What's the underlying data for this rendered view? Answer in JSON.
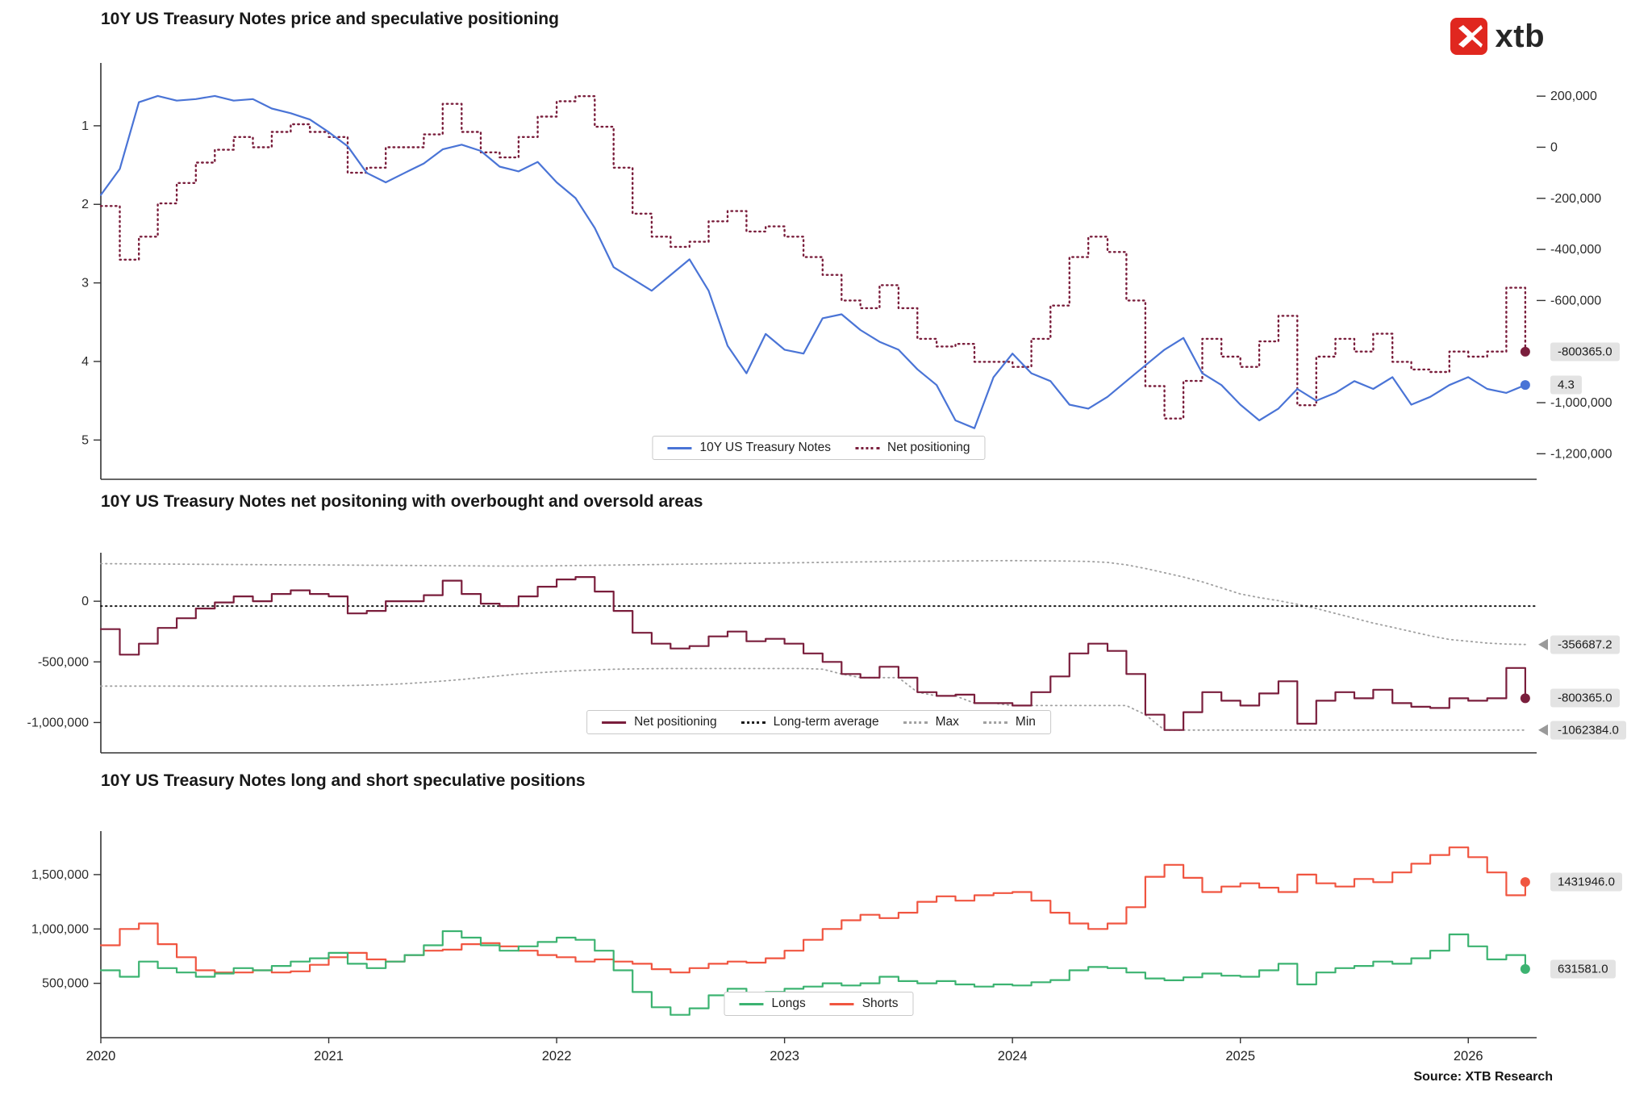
{
  "meta": {
    "source": "Source: XTB Research",
    "logo_text": "xtb",
    "logo_color": "#e0271f"
  },
  "chart_data": {
    "type": "line",
    "x_domain": [
      2020,
      2026.3
    ],
    "x_axis": {
      "ticks": [
        {
          "v": 2020,
          "label": "2020"
        },
        {
          "v": 2021,
          "label": "2021"
        },
        {
          "v": 2022,
          "label": "2022"
        },
        {
          "v": 2023,
          "label": "2023"
        },
        {
          "v": 2024,
          "label": "2024"
        },
        {
          "v": 2025,
          "label": "2025"
        },
        {
          "v": 2026,
          "label": "2026"
        }
      ]
    },
    "colors": {
      "blue": "#4a74d6",
      "maroon": "#7a1e3c",
      "gray": "#a0a0a0",
      "black": "#1a1a1a",
      "green": "#3cb371",
      "red": "#f05540"
    },
    "x": [
      2020,
      2020.083,
      2020.167,
      2020.25,
      2020.333,
      2020.417,
      2020.5,
      2020.583,
      2020.667,
      2020.75,
      2020.833,
      2020.917,
      2021,
      2021.083,
      2021.167,
      2021.25,
      2021.333,
      2021.417,
      2021.5,
      2021.583,
      2021.667,
      2021.75,
      2021.833,
      2021.917,
      2022,
      2022.083,
      2022.167,
      2022.25,
      2022.333,
      2022.417,
      2022.5,
      2022.583,
      2022.667,
      2022.75,
      2022.833,
      2022.917,
      2023,
      2023.083,
      2023.167,
      2023.25,
      2023.333,
      2023.417,
      2023.5,
      2023.583,
      2023.667,
      2023.75,
      2023.833,
      2023.917,
      2024,
      2024.083,
      2024.167,
      2024.25,
      2024.333,
      2024.417,
      2024.5,
      2024.583,
      2024.667,
      2024.75,
      2024.833,
      2024.917,
      2025,
      2025.083,
      2025.167,
      2025.25,
      2025.333,
      2025.417,
      2025.5,
      2025.583,
      2025.667,
      2025.75,
      2025.833,
      2025.917,
      2026,
      2026.083,
      2026.167,
      2026.25
    ],
    "series": {
      "yield": [
        1.88,
        1.55,
        0.7,
        0.62,
        0.68,
        0.66,
        0.62,
        0.68,
        0.66,
        0.78,
        0.84,
        0.92,
        1.08,
        1.26,
        1.6,
        1.72,
        1.6,
        1.48,
        1.3,
        1.24,
        1.32,
        1.52,
        1.58,
        1.46,
        1.72,
        1.92,
        2.3,
        2.8,
        2.95,
        3.1,
        2.9,
        2.7,
        3.1,
        3.8,
        4.15,
        3.65,
        3.85,
        3.9,
        3.45,
        3.4,
        3.6,
        3.75,
        3.85,
        4.1,
        4.3,
        4.75,
        4.85,
        4.2,
        3.9,
        4.15,
        4.25,
        4.55,
        4.6,
        4.45,
        4.25,
        4.05,
        3.85,
        3.7,
        4.15,
        4.3,
        4.55,
        4.75,
        4.6,
        4.35,
        4.5,
        4.4,
        4.25,
        4.35,
        4.2,
        4.55,
        4.45,
        4.3,
        4.2,
        4.35,
        4.4,
        4.3
      ],
      "net": [
        -230000,
        -440000,
        -350000,
        -220000,
        -140000,
        -60000,
        -10000,
        40000,
        0,
        60000,
        90000,
        60000,
        40000,
        -100000,
        -80000,
        0,
        0,
        50000,
        170000,
        60000,
        -20000,
        -40000,
        40000,
        120000,
        180000,
        200000,
        80000,
        -80000,
        -260000,
        -350000,
        -390000,
        -370000,
        -290000,
        -250000,
        -330000,
        -310000,
        -350000,
        -430000,
        -500000,
        -600000,
        -630000,
        -540000,
        -630000,
        -750000,
        -780000,
        -770000,
        -840000,
        -840000,
        -860000,
        -750000,
        -620000,
        -430000,
        -350000,
        -410000,
        -600000,
        -935000,
        -1062000,
        -915000,
        -750000,
        -820000,
        -860000,
        -760000,
        -660000,
        -1010000,
        -820000,
        -750000,
        -800000,
        -730000,
        -840000,
        -870000,
        -880000,
        -800000,
        -820000,
        -800000,
        -550000,
        -800365
      ],
      "max": [
        310000,
        309000,
        308000,
        307000,
        306000,
        305000,
        304000,
        303000,
        302000,
        301000,
        300000,
        300000,
        299000,
        298000,
        297000,
        296000,
        295000,
        294000,
        293000,
        292000,
        291000,
        290000,
        290000,
        291000,
        292000,
        294000,
        296000,
        298000,
        300000,
        302000,
        304000,
        306000,
        308000,
        310000,
        312000,
        314000,
        316000,
        318000,
        320000,
        322000,
        324000,
        326000,
        328000,
        330000,
        331000,
        332000,
        333000,
        334000,
        335000,
        334000,
        333000,
        331000,
        328000,
        320000,
        300000,
        270000,
        235000,
        200000,
        160000,
        110000,
        60000,
        30000,
        5000,
        -25000,
        -60000,
        -100000,
        -140000,
        -180000,
        -215000,
        -250000,
        -285000,
        -315000,
        -330000,
        -345000,
        -353000,
        -356687.2
      ],
      "min": [
        -700000,
        -700000,
        -700000,
        -700000,
        -700000,
        -700000,
        -700000,
        -700000,
        -700000,
        -700000,
        -700000,
        -700000,
        -698000,
        -695000,
        -692000,
        -688000,
        -680000,
        -670000,
        -658000,
        -645000,
        -630000,
        -615000,
        -600000,
        -590000,
        -580000,
        -572000,
        -566000,
        -561000,
        -558000,
        -556000,
        -555000,
        -555000,
        -555000,
        -555000,
        -555000,
        -555000,
        -555000,
        -555000,
        -560000,
        -600000,
        -630000,
        -630000,
        -630000,
        -750000,
        -780000,
        -780000,
        -840000,
        -840000,
        -860000,
        -860000,
        -860000,
        -860000,
        -860000,
        -860000,
        -860000,
        -935000,
        -1062384,
        -1062384,
        -1062384,
        -1062384,
        -1062384,
        -1062384,
        -1062384,
        -1062384,
        -1062384,
        -1062384,
        -1062384,
        -1062384,
        -1062384,
        -1062384,
        -1062384,
        -1062384,
        -1062384,
        -1062384,
        -1062384,
        -1062384
      ],
      "longs": [
        620000,
        560000,
        700000,
        640000,
        600000,
        560000,
        590000,
        640000,
        620000,
        660000,
        700000,
        730000,
        780000,
        680000,
        640000,
        700000,
        760000,
        850000,
        980000,
        920000,
        850000,
        800000,
        840000,
        880000,
        920000,
        900000,
        800000,
        620000,
        420000,
        280000,
        210000,
        270000,
        390000,
        450000,
        360000,
        420000,
        450000,
        470000,
        500000,
        480000,
        500000,
        560000,
        520000,
        500000,
        520000,
        490000,
        470000,
        490000,
        480000,
        510000,
        530000,
        620000,
        650000,
        640000,
        600000,
        545000,
        528000,
        555000,
        590000,
        570000,
        560000,
        620000,
        680000,
        490000,
        600000,
        640000,
        660000,
        700000,
        680000,
        730000,
        800000,
        950000,
        840000,
        720000,
        760000,
        631581
      ],
      "shorts": [
        850000,
        1000000,
        1050000,
        860000,
        740000,
        620000,
        600000,
        600000,
        620000,
        600000,
        610000,
        670000,
        740000,
        780000,
        720000,
        700000,
        760000,
        800000,
        810000,
        860000,
        870000,
        840000,
        800000,
        760000,
        740000,
        700000,
        720000,
        700000,
        680000,
        630000,
        600000,
        640000,
        680000,
        700000,
        690000,
        730000,
        800000,
        900000,
        1000000,
        1080000,
        1130000,
        1100000,
        1150000,
        1250000,
        1300000,
        1260000,
        1310000,
        1330000,
        1340000,
        1260000,
        1150000,
        1050000,
        1000000,
        1050000,
        1200000,
        1480000,
        1590000,
        1470000,
        1340000,
        1390000,
        1420000,
        1380000,
        1340000,
        1500000,
        1420000,
        1390000,
        1460000,
        1430000,
        1520000,
        1600000,
        1680000,
        1750000,
        1660000,
        1520000,
        1310000,
        1431946
      ]
    },
    "charts": [
      {
        "title": "10Y US Treasury Notes price and speculative positioning",
        "axes": {
          "left": {
            "domain": [
              0.2,
              5.5
            ],
            "ticks": [
              {
                "v": 1,
                "label": "1"
              },
              {
                "v": 2,
                "label": "2"
              },
              {
                "v": 3,
                "label": "3"
              },
              {
                "v": 4,
                "label": "4"
              },
              {
                "v": 5,
                "label": "5"
              }
            ]
          },
          "right": {
            "domain": [
              330000,
              -1300000
            ],
            "ticks": [
              {
                "v": 200000,
                "label": "200,000"
              },
              {
                "v": 0,
                "label": "0"
              },
              {
                "v": -200000,
                "label": "-200,000"
              },
              {
                "v": -400000,
                "label": "-400,000"
              },
              {
                "v": -600000,
                "label": "-600,000"
              },
              {
                "v": -1000000,
                "label": "-1,000,000"
              },
              {
                "v": -1200000,
                "label": "-1,200,000"
              }
            ]
          }
        },
        "series": [
          {
            "name": "10Y US Treasury Notes",
            "key": "yield",
            "axis": "left",
            "color": "blue",
            "style": "solid",
            "step": false,
            "width": 2.2
          },
          {
            "name": "Net positioning",
            "key": "net",
            "axis": "right",
            "color": "maroon",
            "style": "dotted",
            "step": true,
            "width": 2.4
          }
        ],
        "badges": [
          {
            "text": "-800365.0",
            "axis": "right",
            "value": -800365,
            "marker": "dot",
            "color": "maroon"
          },
          {
            "text": "4.3",
            "axis": "left",
            "value": 4.3,
            "marker": "dot",
            "color": "blue"
          }
        ]
      },
      {
        "title": "10Y US Treasury Notes net positoning with overbought and oversold areas",
        "axes": {
          "left": {
            "domain": [
              400000,
              -1250000
            ],
            "ticks": [
              {
                "v": 0,
                "label": "0"
              },
              {
                "v": -500000,
                "label": "-500,000"
              },
              {
                "v": -1000000,
                "label": "-1,000,000"
              }
            ]
          }
        },
        "series": [
          {
            "name": "Net positioning",
            "key": "net",
            "axis": "left",
            "color": "maroon",
            "style": "solid",
            "step": true,
            "width": 2.2
          },
          {
            "name": "Long-term average",
            "constant": -40000,
            "axis": "left",
            "color": "black",
            "style": "dotted",
            "width": 2
          },
          {
            "name": "Max",
            "key": "max",
            "axis": "left",
            "color": "gray",
            "style": "dotted",
            "step": false,
            "width": 1.8
          },
          {
            "name": "Min",
            "key": "min",
            "axis": "left",
            "color": "gray",
            "style": "dotted",
            "step": false,
            "width": 1.8
          }
        ],
        "badges": [
          {
            "text": "-356687.2",
            "axis": "left",
            "value": -356687,
            "marker": "tri",
            "color": "gray"
          },
          {
            "text": "-800365.0",
            "axis": "left",
            "value": -800365,
            "marker": "dot",
            "color": "maroon"
          },
          {
            "text": "-1062384.0",
            "axis": "left",
            "value": -1062384,
            "marker": "tri",
            "color": "gray"
          }
        ]
      },
      {
        "title": "10Y US Treasury Notes long and short speculative positions",
        "axes": {
          "left": {
            "domain": [
              1900000,
              0
            ],
            "ticks": [
              {
                "v": 500000,
                "label": "500,000"
              },
              {
                "v": 1000000,
                "label": "1,000,000"
              },
              {
                "v": 1500000,
                "label": "1,500,000"
              }
            ]
          }
        },
        "series": [
          {
            "name": "Longs",
            "key": "longs",
            "axis": "left",
            "color": "green",
            "style": "solid",
            "step": true,
            "width": 2.2
          },
          {
            "name": "Shorts",
            "key": "shorts",
            "axis": "left",
            "color": "red",
            "style": "solid",
            "step": true,
            "width": 2.2
          }
        ],
        "badges": [
          {
            "text": "1431946.0",
            "axis": "left",
            "value": 1431946,
            "marker": "dot",
            "color": "red"
          },
          {
            "text": "631581.0",
            "axis": "left",
            "value": 631581,
            "marker": "dot",
            "color": "green"
          }
        ]
      }
    ]
  }
}
